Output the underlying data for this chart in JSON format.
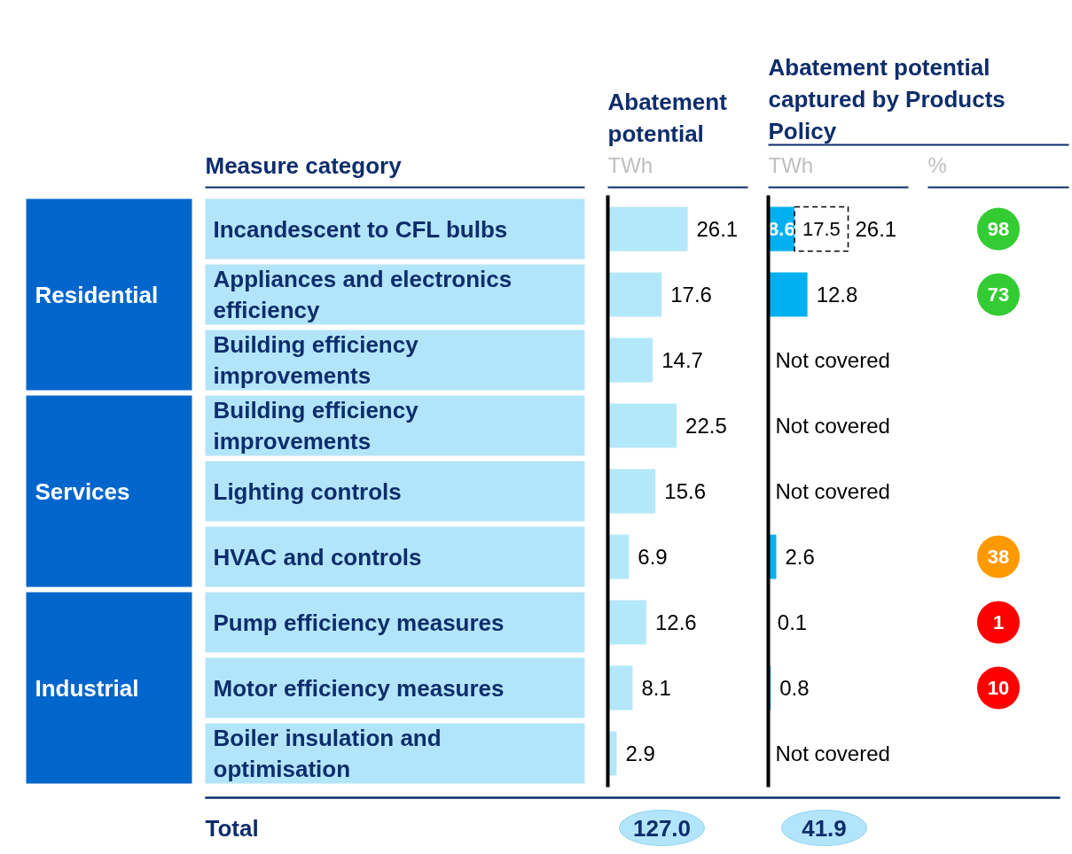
{
  "chart_data": [
    {
      "type": "bar",
      "orientation": "horizontal",
      "title": "Abatement potential",
      "subtitle": "TWh",
      "ylabel": "Measure category",
      "categories": [
        "Incandescent to CFL bulbs",
        "Appliances and electronics efficiency",
        "Building efficiency improvements",
        "Building efficiency improvements",
        "Lighting controls",
        "HVAC and controls",
        "Pump efficiency measures",
        "Motor efficiency measures",
        "Boiler insulation and optimisation"
      ],
      "values": [
        26.1,
        17.6,
        14.7,
        22.5,
        15.6,
        6.9,
        12.6,
        8.1,
        2.9
      ],
      "color": "#b3e8fb",
      "data_labels": true,
      "tick_labels": "y",
      "annotations": [
        "Residential",
        "Services",
        "Industrial",
        "Total",
        "127.0"
      ]
    },
    {
      "type": "bar",
      "orientation": "horizontal",
      "stacked": true,
      "title": "Abatement potential captured by Products Policy",
      "subtitle": "TWh",
      "categories": [
        "Incandescent to CFL bulbs",
        "Appliances and electronics efficiency",
        "Building efficiency improvements",
        "Building efficiency improvements",
        "Lighting controls",
        "HVAC and controls",
        "Pump efficiency measures",
        "Motor efficiency measures",
        "Boiler insulation and optimisation"
      ],
      "tick_labels": false,
      "series": [
        {
          "color": "#00b0f0",
          "values": [
            8.6,
            12.8,
            null,
            null,
            null,
            2.6,
            0.1,
            0.8,
            null
          ],
          "value_labels": [
            "8.6",
            "12.8",
            "Not covered",
            "Not covered",
            "Not covered",
            "2.6",
            "0.1",
            "0.8",
            "Not covered"
          ]
        },
        {
          "color": "#ffffff",
          "line_style": "dashed",
          "values": [
            17.5,
            null,
            null,
            null,
            null,
            null,
            null,
            null,
            null
          ],
          "value_labels": [
            "17.5",
            null,
            null,
            null,
            null,
            null,
            null,
            null,
            null
          ]
        }
      ],
      "totals": [
        "26.1",
        null,
        null,
        null,
        null,
        null,
        null,
        null,
        null
      ],
      "annotations": [
        "41.9"
      ]
    },
    {
      "type": "other",
      "subtitle": "%",
      "categories": [
        null,
        null,
        null,
        null,
        null,
        null,
        null,
        null,
        null
      ],
      "values": [
        98,
        73,
        null,
        null,
        null,
        38,
        1,
        10,
        null
      ],
      "colors": [
        "#33cc33",
        "#33cc33",
        null,
        null,
        null,
        "#ff9900",
        "#ff0000",
        "#ff0000",
        null
      ],
      "data_labels": true
    }
  ]
}
